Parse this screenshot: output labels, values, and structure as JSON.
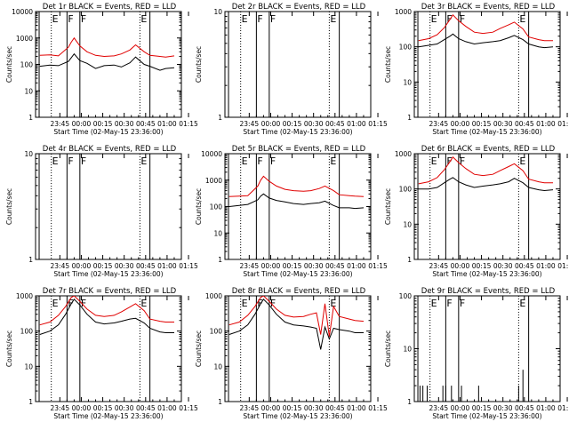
{
  "colors": {
    "events": "#000000",
    "lld": "#e00000",
    "axis": "#000000",
    "background": "#ffffff"
  },
  "chart_data": [
    {
      "type": "line",
      "title": "Det 1r BLACK = Events, RED = LLD",
      "ylabel": "Counts/sec",
      "xlabel": "Start Time (02-May-15 23:36:00)",
      "xticks": [
        "23:45",
        "00:00",
        "00:15",
        "00:30",
        "00:45",
        "01:00",
        "01:15"
      ],
      "yscale": "log",
      "ylim": [
        1,
        10000
      ],
      "yticks": [
        "1",
        "10",
        "100",
        "1000",
        "10000"
      ],
      "markers": [
        "E",
        "F",
        "F",
        "E"
      ],
      "legend": "none",
      "series": [
        {
          "color": "events",
          "x": [
            -14,
            -7,
            -1,
            6,
            8,
            10,
            14,
            19,
            25,
            31,
            38,
            43,
            49,
            53,
            59,
            63,
            70,
            74,
            80
          ],
          "values": [
            85,
            95,
            90,
            130,
            180,
            250,
            140,
            110,
            70,
            90,
            95,
            80,
            115,
            190,
            100,
            85,
            60,
            70,
            75
          ]
        },
        {
          "color": "lld",
          "x": [
            -14,
            -7,
            -1,
            6,
            8,
            10,
            14,
            19,
            25,
            31,
            38,
            43,
            49,
            53,
            59,
            63,
            70,
            74,
            80
          ],
          "values": [
            220,
            230,
            210,
            450,
            700,
            1000,
            500,
            300,
            220,
            200,
            210,
            250,
            350,
            550,
            300,
            220,
            200,
            190,
            210
          ]
        }
      ]
    },
    {
      "type": "line",
      "title": "Det 2r BLACK = Events, RED = LLD",
      "ylabel": "Counts/sec",
      "xlabel": "Start Time (02-May-15 23:36:00)",
      "xticks": [
        "23:45",
        "00:00",
        "00:15",
        "00:30",
        "00:45",
        "01:00",
        "01:15"
      ],
      "yscale": "log",
      "ylim": [
        1,
        10
      ],
      "yticks": [
        "1",
        "10"
      ],
      "markers": [
        "E",
        "F",
        "F",
        "E"
      ],
      "legend": "none",
      "series": []
    },
    {
      "type": "line",
      "title": "Det 3r BLACK = Events, RED = LLD",
      "ylabel": "Counts/sec",
      "xlabel": "Start Time (02-May-15 23:36:00)",
      "xticks": [
        "23:45",
        "00:00",
        "00:15",
        "00:30",
        "00:45",
        "01:00",
        "01:15"
      ],
      "yscale": "log",
      "ylim": [
        1,
        1000
      ],
      "yticks": [
        "1",
        "10",
        "100",
        "1000"
      ],
      "markers": [
        "E",
        "F",
        "F",
        "E"
      ],
      "legend": "none",
      "series": [
        {
          "color": "events",
          "x": [
            -14,
            -7,
            -1,
            4,
            8,
            10,
            14,
            19,
            25,
            31,
            38,
            43,
            49,
            53,
            59,
            63,
            70,
            74,
            80
          ],
          "values": [
            100,
            110,
            120,
            160,
            200,
            230,
            170,
            140,
            120,
            130,
            140,
            150,
            180,
            210,
            160,
            120,
            100,
            95,
            100
          ]
        },
        {
          "color": "lld",
          "x": [
            -14,
            -7,
            -1,
            4,
            8,
            10,
            14,
            19,
            25,
            31,
            38,
            43,
            49,
            53,
            59,
            63,
            70,
            74,
            80
          ],
          "values": [
            150,
            170,
            220,
            350,
            600,
            800,
            550,
            380,
            260,
            240,
            260,
            330,
            420,
            500,
            320,
            190,
            160,
            150,
            150
          ]
        }
      ]
    },
    {
      "type": "line",
      "title": "Det 4r BLACK = Events, RED = LLD",
      "ylabel": "Counts/sec",
      "xlabel": "Start Time (02-May-15 23:36:00)",
      "xticks": [
        "23:45",
        "00:00",
        "00:15",
        "00:30",
        "00:45",
        "01:00",
        "01:15"
      ],
      "yscale": "log",
      "ylim": [
        1,
        10
      ],
      "yticks": [
        "1",
        "10"
      ],
      "markers": [
        "E",
        "F",
        "F",
        "E"
      ],
      "legend": "none",
      "series": []
    },
    {
      "type": "line",
      "title": "Det 5r BLACK = Events, RED = LLD",
      "ylabel": "Counts/sec",
      "xlabel": "Start Time (02-May-15 23:36:00)",
      "xticks": [
        "23:45",
        "00:00",
        "00:15",
        "00:30",
        "00:45",
        "01:00",
        "01:15"
      ],
      "yscale": "log",
      "ylim": [
        1,
        10000
      ],
      "yticks": [
        "1",
        "10",
        "100",
        "1000",
        "10000"
      ],
      "markers": [
        "E",
        "F",
        "F",
        "E"
      ],
      "legend": "none",
      "series": [
        {
          "color": "events",
          "x": [
            -14,
            -7,
            -1,
            6,
            8,
            10,
            14,
            19,
            25,
            31,
            38,
            43,
            49,
            53,
            59,
            63,
            70,
            74,
            80
          ],
          "values": [
            100,
            110,
            120,
            180,
            250,
            300,
            210,
            170,
            150,
            130,
            120,
            130,
            140,
            160,
            110,
            90,
            90,
            85,
            90
          ]
        },
        {
          "color": "lld",
          "x": [
            -14,
            -7,
            -1,
            6,
            8,
            10,
            14,
            19,
            25,
            31,
            38,
            43,
            49,
            53,
            59,
            63,
            70,
            74,
            80
          ],
          "values": [
            240,
            250,
            260,
            600,
            1000,
            1400,
            900,
            600,
            450,
            400,
            380,
            400,
            480,
            600,
            400,
            280,
            260,
            250,
            240
          ]
        }
      ]
    },
    {
      "type": "line",
      "title": "Det 6r BLACK = Events, RED = LLD",
      "ylabel": "Counts/sec",
      "xlabel": "Start Time (02-May-15 23:36:00)",
      "xticks": [
        "23:45",
        "00:00",
        "00:15",
        "00:30",
        "00:45",
        "01:00",
        "01:15"
      ],
      "yscale": "log",
      "ylim": [
        1,
        1000
      ],
      "yticks": [
        "1",
        "10",
        "100",
        "1000"
      ],
      "markers": [
        "E",
        "F",
        "F",
        "E"
      ],
      "legend": "none",
      "series": [
        {
          "color": "events",
          "x": [
            -14,
            -7,
            -1,
            4,
            8,
            10,
            14,
            19,
            25,
            31,
            38,
            43,
            49,
            53,
            59,
            63,
            70,
            74,
            80
          ],
          "values": [
            100,
            100,
            110,
            150,
            190,
            210,
            160,
            130,
            110,
            120,
            130,
            140,
            160,
            200,
            150,
            110,
            95,
            90,
            95
          ]
        },
        {
          "color": "lld",
          "x": [
            -14,
            -7,
            -1,
            4,
            8,
            10,
            14,
            19,
            25,
            31,
            38,
            43,
            49,
            53,
            59,
            63,
            70,
            74,
            80
          ],
          "values": [
            140,
            160,
            210,
            350,
            600,
            800,
            560,
            380,
            260,
            240,
            260,
            330,
            430,
            520,
            330,
            190,
            160,
            150,
            150
          ]
        }
      ]
    },
    {
      "type": "line",
      "title": "Det 7r BLACK = Events, RED = LLD",
      "ylabel": "Counts/sec",
      "xlabel": "Start Time (02-May-15 23:36:00)",
      "xticks": [
        "23:45",
        "00:00",
        "00:15",
        "00:30",
        "00:45",
        "01:00",
        "01:15"
      ],
      "yscale": "log",
      "ylim": [
        1,
        1000
      ],
      "yticks": [
        "1",
        "10",
        "100",
        "1000"
      ],
      "markers": [
        "E",
        "F",
        "F",
        "E"
      ],
      "legend": "none",
      "series": [
        {
          "color": "events",
          "x": [
            -14,
            -7,
            -1,
            4,
            8,
            10,
            14,
            19,
            25,
            31,
            38,
            43,
            49,
            53,
            59,
            63,
            70,
            74,
            80
          ],
          "values": [
            80,
            100,
            150,
            300,
            600,
            800,
            550,
            300,
            180,
            160,
            170,
            190,
            220,
            230,
            170,
            120,
            95,
            90,
            90
          ]
        },
        {
          "color": "lld",
          "x": [
            -14,
            -7,
            -1,
            4,
            8,
            10,
            14,
            19,
            25,
            31,
            38,
            43,
            49,
            53,
            59,
            63,
            70,
            74,
            80
          ],
          "values": [
            150,
            180,
            280,
            500,
            900,
            1000,
            700,
            420,
            280,
            260,
            280,
            350,
            480,
            600,
            380,
            220,
            190,
            180,
            180
          ]
        }
      ]
    },
    {
      "type": "line",
      "title": "Det 8r BLACK = Events, RED = LLD",
      "ylabel": "Counts/sec",
      "xlabel": "Start Time (02-May-15 23:36:00)",
      "xticks": [
        "23:45",
        "00:00",
        "00:15",
        "00:30",
        "00:45",
        "01:00",
        "01:15"
      ],
      "yscale": "log",
      "ylim": [
        1,
        1000
      ],
      "yticks": [
        "1",
        "10",
        "100",
        "1000"
      ],
      "markers": [
        "E",
        "F",
        "F",
        "E"
      ],
      "legend": "none",
      "series": [
        {
          "color": "events",
          "x": [
            -14,
            -7,
            -1,
            4,
            8,
            10,
            14,
            19,
            25,
            31,
            38,
            43,
            47,
            50,
            53,
            56,
            59,
            63,
            70,
            74,
            80
          ],
          "values": [
            80,
            100,
            150,
            300,
            600,
            800,
            550,
            300,
            180,
            150,
            140,
            130,
            120,
            30,
            130,
            60,
            120,
            110,
            100,
            90,
            90
          ]
        },
        {
          "color": "lld",
          "x": [
            -14,
            -7,
            -1,
            4,
            8,
            10,
            14,
            19,
            25,
            31,
            38,
            43,
            47,
            50,
            53,
            56,
            59,
            63,
            70,
            74,
            80
          ],
          "values": [
            150,
            180,
            280,
            500,
            900,
            1000,
            700,
            420,
            280,
            250,
            260,
            300,
            330,
            80,
            600,
            70,
            500,
            260,
            220,
            200,
            190
          ]
        }
      ]
    },
    {
      "type": "line",
      "title": "Det 9r BLACK = Events, RED = LLD",
      "ylabel": "Counts/sec",
      "xlabel": "Start Time (02-May-15 23:36:00)",
      "xticks": [
        "23:45",
        "00:00",
        "00:15",
        "00:30",
        "00:45",
        "01:00",
        "01:15"
      ],
      "yscale": "log",
      "ylim": [
        1,
        100
      ],
      "yticks": [
        "1",
        "10",
        "100"
      ],
      "markers": [
        "E",
        "F",
        "F",
        "E"
      ],
      "legend": "none",
      "series": [
        {
          "color": "events",
          "style": "spikes",
          "x": [
            -13,
            -11,
            -8,
            3,
            5,
            9,
            16,
            28,
            56,
            59
          ],
          "values": [
            2,
            2,
            2,
            2,
            2,
            2,
            2,
            2,
            2,
            4
          ]
        }
      ]
    }
  ]
}
